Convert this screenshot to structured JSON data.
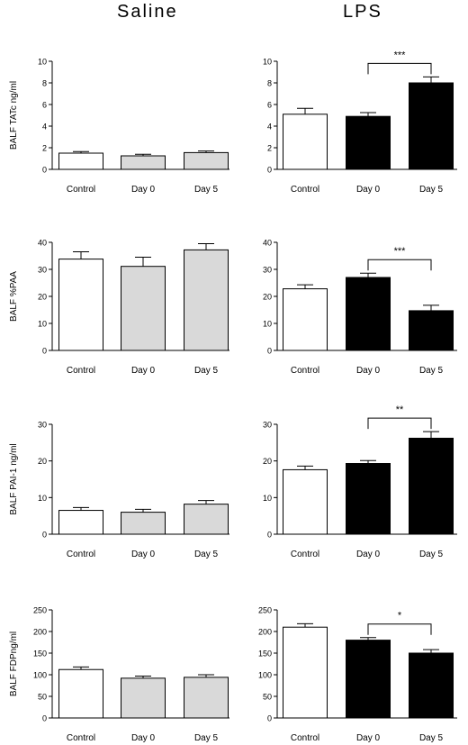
{
  "column_titles": {
    "left": "Saline",
    "right": "LPS"
  },
  "colors": {
    "control": "#ffffff",
    "saline": "#d9d9d9",
    "lps": "#000000",
    "axis": "#000000"
  },
  "chart_data": [
    {
      "type": "bar",
      "group": "Saline",
      "ylabel": "BALF TATc ng/ml",
      "ylim": [
        0,
        10
      ],
      "yticks": [
        0,
        2,
        4,
        6,
        8,
        10
      ],
      "categories": [
        "Control",
        "Day 0",
        "Day 5"
      ],
      "values": [
        1.5,
        1.25,
        1.55
      ],
      "errors": [
        0.15,
        0.15,
        0.15
      ],
      "significance": null
    },
    {
      "type": "bar",
      "group": "LPS",
      "ylabel": "",
      "ylim": [
        0,
        10
      ],
      "yticks": [
        0,
        2,
        4,
        6,
        8,
        10
      ],
      "categories": [
        "Control",
        "Day 0",
        "Day 5"
      ],
      "values": [
        5.1,
        4.9,
        8.0
      ],
      "errors": [
        0.55,
        0.35,
        0.55
      ],
      "significance": {
        "from": 1,
        "to": 2,
        "label": "***"
      }
    },
    {
      "type": "bar",
      "group": "Saline",
      "ylabel": "BALF %PAA",
      "ylim": [
        0,
        40
      ],
      "yticks": [
        0,
        10,
        20,
        30,
        40
      ],
      "categories": [
        "Control",
        "Day 0",
        "Day 5"
      ],
      "values": [
        33.8,
        31.1,
        37.2
      ],
      "errors": [
        2.7,
        3.4,
        2.3
      ],
      "significance": null
    },
    {
      "type": "bar",
      "group": "LPS",
      "ylabel": "",
      "ylim": [
        0,
        40
      ],
      "yticks": [
        0,
        10,
        20,
        30,
        40
      ],
      "categories": [
        "Control",
        "Day 0",
        "Day 5"
      ],
      "values": [
        22.8,
        27.0,
        14.7
      ],
      "errors": [
        1.5,
        1.6,
        2.0
      ],
      "significance": {
        "from": 1,
        "to": 2,
        "label": "***"
      }
    },
    {
      "type": "bar",
      "group": "Saline",
      "ylabel": "BALF PAI-1 ng/ml",
      "ylim": [
        0,
        30
      ],
      "yticks": [
        0,
        10,
        20,
        30
      ],
      "categories": [
        "Control",
        "Day 0",
        "Day 5"
      ],
      "values": [
        6.5,
        6.0,
        8.2
      ],
      "errors": [
        0.8,
        0.8,
        1.0
      ],
      "significance": null
    },
    {
      "type": "bar",
      "group": "LPS",
      "ylabel": "",
      "ylim": [
        0,
        30
      ],
      "yticks": [
        0,
        10,
        20,
        30
      ],
      "categories": [
        "Control",
        "Day 0",
        "Day 5"
      ],
      "values": [
        17.6,
        19.3,
        26.2
      ],
      "errors": [
        1.0,
        0.8,
        1.8
      ],
      "significance": {
        "from": 1,
        "to": 2,
        "label": "**"
      }
    },
    {
      "type": "bar",
      "group": "Saline",
      "ylabel": "BALF FDPng/ml",
      "ylim": [
        0,
        250
      ],
      "yticks": [
        0,
        50,
        100,
        150,
        200,
        250
      ],
      "categories": [
        "Control",
        "Day 0",
        "Day 5"
      ],
      "values": [
        112,
        92,
        94
      ],
      "errors": [
        6,
        5,
        6
      ],
      "significance": null
    },
    {
      "type": "bar",
      "group": "LPS",
      "ylabel": "",
      "ylim": [
        0,
        250
      ],
      "yticks": [
        0,
        50,
        100,
        150,
        200,
        250
      ],
      "categories": [
        "Control",
        "Day 0",
        "Day 5"
      ],
      "values": [
        210,
        180,
        150
      ],
      "errors": [
        8,
        6,
        8
      ],
      "significance": {
        "from": 1,
        "to": 2,
        "label": "*"
      }
    }
  ]
}
